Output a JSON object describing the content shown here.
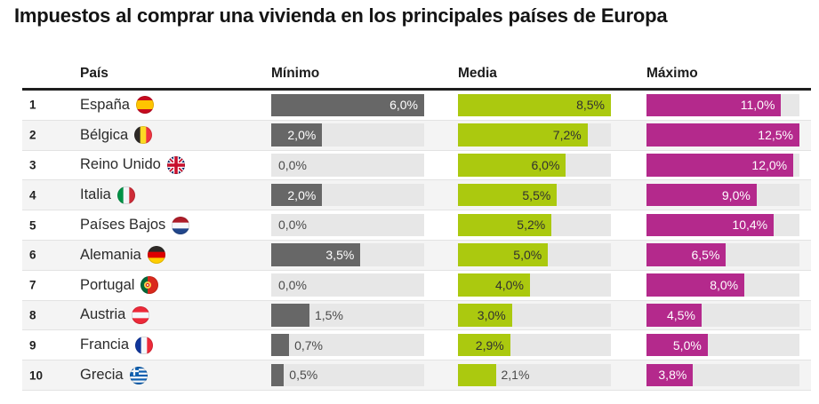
{
  "title": "Impuestos al comprar una vivienda en los principales países de Europa",
  "table": {
    "columns": [
      "País",
      "Mínimo",
      "Media",
      "Máximo"
    ],
    "rows": [
      {
        "rank": "1",
        "country": "España",
        "flag": "es",
        "cells": [
          {
            "value": 6.0,
            "label": "6,0%"
          },
          {
            "value": 8.5,
            "label": "8,5%"
          },
          {
            "value": 11.0,
            "label": "11,0%"
          }
        ]
      },
      {
        "rank": "2",
        "country": "Bélgica",
        "flag": "be",
        "cells": [
          {
            "value": 2.0,
            "label": "2,0%"
          },
          {
            "value": 7.2,
            "label": "7,2%"
          },
          {
            "value": 12.5,
            "label": "12,5%"
          }
        ]
      },
      {
        "rank": "3",
        "country": "Reino Unido",
        "flag": "gb",
        "cells": [
          {
            "value": 0.0,
            "label": "0,0%"
          },
          {
            "value": 6.0,
            "label": "6,0%"
          },
          {
            "value": 12.0,
            "label": "12,0%"
          }
        ]
      },
      {
        "rank": "4",
        "country": "Italia",
        "flag": "it",
        "cells": [
          {
            "value": 2.0,
            "label": "2,0%"
          },
          {
            "value": 5.5,
            "label": "5,5%"
          },
          {
            "value": 9.0,
            "label": "9,0%"
          }
        ]
      },
      {
        "rank": "5",
        "country": "Países Bajos",
        "flag": "nl",
        "cells": [
          {
            "value": 0.0,
            "label": "0,0%"
          },
          {
            "value": 5.2,
            "label": "5,2%"
          },
          {
            "value": 10.4,
            "label": "10,4%"
          }
        ]
      },
      {
        "rank": "6",
        "country": "Alemania",
        "flag": "de",
        "cells": [
          {
            "value": 3.5,
            "label": "3,5%"
          },
          {
            "value": 5.0,
            "label": "5,0%"
          },
          {
            "value": 6.5,
            "label": "6,5%"
          }
        ]
      },
      {
        "rank": "7",
        "country": "Portugal",
        "flag": "pt",
        "cells": [
          {
            "value": 0.0,
            "label": "0,0%"
          },
          {
            "value": 4.0,
            "label": "4,0%"
          },
          {
            "value": 8.0,
            "label": "8,0%"
          }
        ]
      },
      {
        "rank": "8",
        "country": "Austria",
        "flag": "at",
        "cells": [
          {
            "value": 1.5,
            "label": "1,5%"
          },
          {
            "value": 3.0,
            "label": "3,0%"
          },
          {
            "value": 4.5,
            "label": "4,5%"
          }
        ]
      },
      {
        "rank": "9",
        "country": "Francia",
        "flag": "fr",
        "cells": [
          {
            "value": 0.7,
            "label": "0,7%"
          },
          {
            "value": 2.9,
            "label": "2,9%"
          },
          {
            "value": 5.0,
            "label": "5,0%"
          }
        ]
      },
      {
        "rank": "10",
        "country": "Grecia",
        "flag": "gr",
        "cells": [
          {
            "value": 0.5,
            "label": "0,5%"
          },
          {
            "value": 2.1,
            "label": "2,1%"
          },
          {
            "value": 3.8,
            "label": "3,8%"
          }
        ]
      }
    ]
  },
  "colors": {
    "minimo_bar": "#676767",
    "media_bar": "#abc90f",
    "maximo_bar": "#b4298c",
    "track": "#e7e7e7",
    "row_stripe": "#f4f4f4",
    "header_rule": "#1e1e1e",
    "value_on_dark_bar": "#ffffff",
    "value_on_media_bar": "#303030",
    "value_outside": "#4a4a4a"
  },
  "flags": {
    "es": {
      "type": "h",
      "stripes": [
        "#c60b1e",
        "#ffc400",
        "#c60b1e"
      ],
      "weights": [
        1,
        2,
        1
      ]
    },
    "be": {
      "type": "v",
      "stripes": [
        "#2d2926",
        "#fdda24",
        "#ef3340"
      ],
      "weights": [
        1,
        1,
        1
      ]
    },
    "gb": {
      "type": "uk",
      "base": "#012169",
      "cross": "#c8102e",
      "diag": "#ffffff"
    },
    "it": {
      "type": "v",
      "stripes": [
        "#009246",
        "#f2f4f7",
        "#ce2b37"
      ],
      "weights": [
        1,
        1,
        1
      ]
    },
    "nl": {
      "type": "h",
      "stripes": [
        "#ae1c28",
        "#f5f7fa",
        "#21468b"
      ],
      "weights": [
        1,
        1,
        1
      ]
    },
    "de": {
      "type": "h",
      "stripes": [
        "#2d2926",
        "#dd0000",
        "#ffce00"
      ],
      "weights": [
        1,
        1,
        1
      ]
    },
    "pt": {
      "type": "pt",
      "stripes": [
        "#046a38",
        "#da291c"
      ],
      "emblem": "#ffd34d",
      "emblem_inner": "#da291c"
    },
    "at": {
      "type": "h",
      "stripes": [
        "#ed2939",
        "#f5f7fa",
        "#ed2939"
      ],
      "weights": [
        1,
        1,
        1
      ]
    },
    "fr": {
      "type": "v",
      "stripes": [
        "#10369c",
        "#f5f7fa",
        "#ed2939"
      ],
      "weights": [
        1,
        1,
        1
      ]
    },
    "gr": {
      "type": "gr",
      "blue": "#0d5eaf",
      "white": "#f5f7fa"
    }
  },
  "chart_data": {
    "type": "bar",
    "orientation": "horizontal",
    "title": "Impuestos al comprar una vivienda en los principales países de Europa",
    "categories": [
      "España",
      "Bélgica",
      "Reino Unido",
      "Italia",
      "Países Bajos",
      "Alemania",
      "Portugal",
      "Austria",
      "Francia",
      "Grecia"
    ],
    "series": [
      {
        "name": "Mínimo",
        "color": "#676767",
        "values": [
          6.0,
          2.0,
          0.0,
          2.0,
          0.0,
          3.5,
          0.0,
          1.5,
          0.7,
          0.5
        ]
      },
      {
        "name": "Media",
        "color": "#abc90f",
        "values": [
          8.5,
          7.2,
          6.0,
          5.5,
          5.2,
          5.0,
          4.0,
          3.0,
          2.9,
          2.1
        ]
      },
      {
        "name": "Máximo",
        "color": "#b4298c",
        "values": [
          11.0,
          12.5,
          12.0,
          9.0,
          10.4,
          6.5,
          8.0,
          4.5,
          5.0,
          3.8
        ]
      }
    ],
    "value_format": "comma-decimal percent (e.g. 6,0%)",
    "bars_scaled_to_column_max": true,
    "column_max": {
      "Mínimo": 6.0,
      "Media": 8.5,
      "Máximo": 12.5
    },
    "grid": false,
    "legend_position": "column headers"
  }
}
